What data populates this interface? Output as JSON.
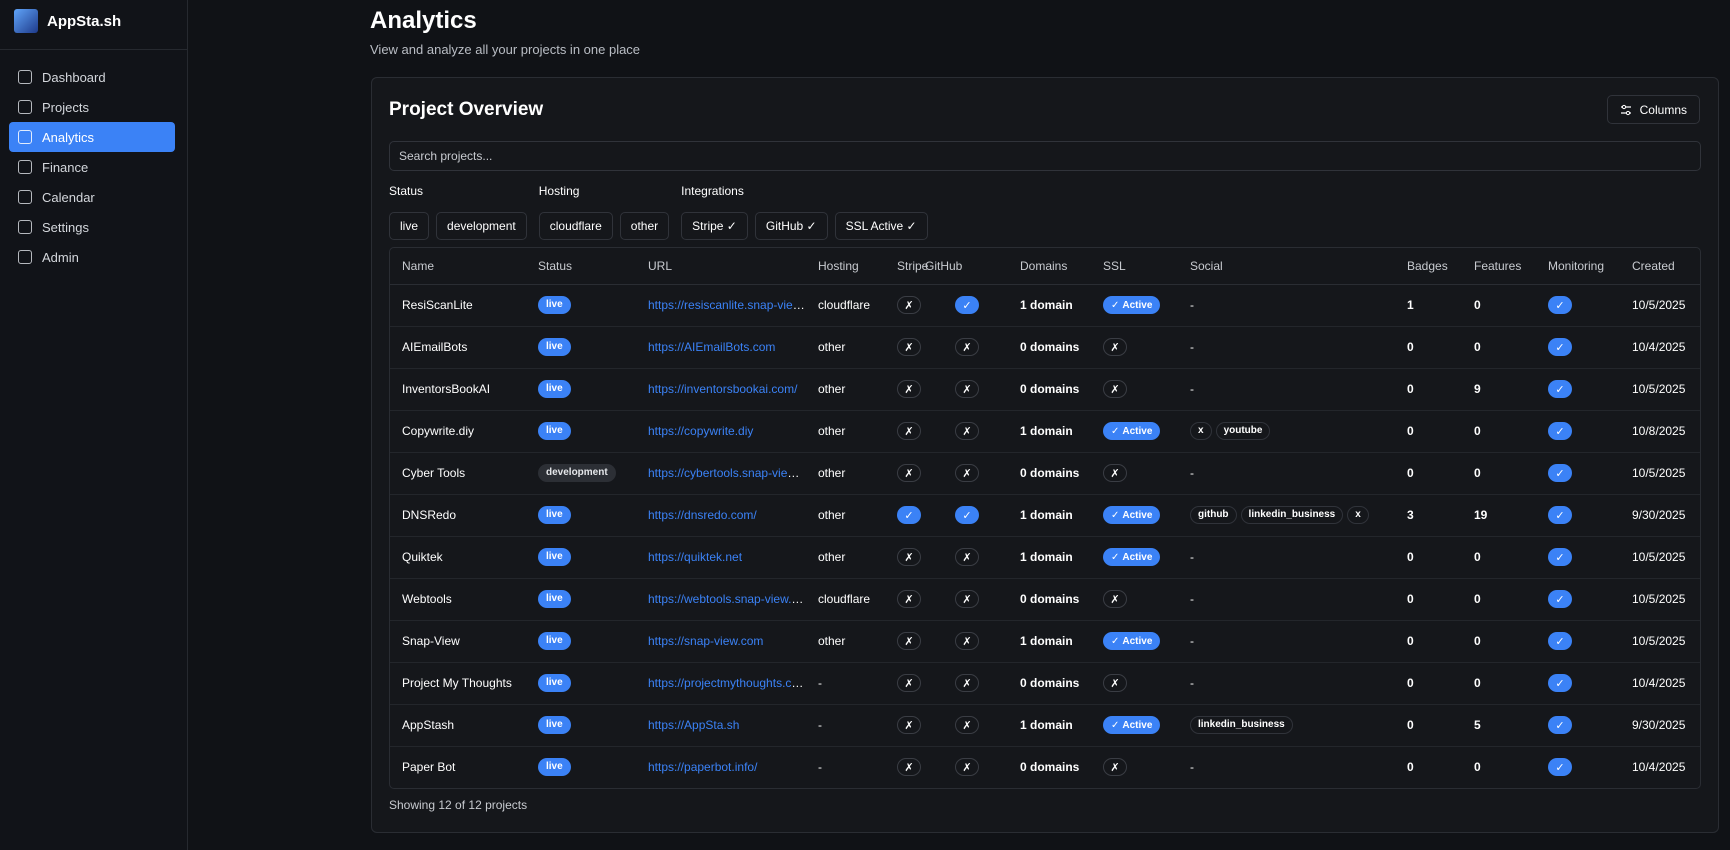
{
  "sidebar": {
    "brand": "AppSta.sh",
    "nav": [
      {
        "label": "Dashboard",
        "active": false
      },
      {
        "label": "Projects",
        "active": false
      },
      {
        "label": "Analytics",
        "active": true
      },
      {
        "label": "Finance",
        "active": false
      },
      {
        "label": "Calendar",
        "active": false
      },
      {
        "label": "Settings",
        "active": false
      },
      {
        "label": "Admin",
        "active": false
      }
    ]
  },
  "header": {
    "title": "Analytics",
    "subtitle": "View and analyze all your projects in one place"
  },
  "card": {
    "title": "Project Overview",
    "columns_button": "Columns",
    "search_placeholder": "Search projects...",
    "filters": [
      {
        "label": "Status",
        "options": [
          "live",
          "development"
        ]
      },
      {
        "label": "Hosting",
        "options": [
          "cloudflare",
          "other"
        ]
      },
      {
        "label": "Integrations",
        "options": [
          "Stripe ✓",
          "GitHub ✓",
          "SSL Active ✓"
        ]
      }
    ],
    "footer": "Showing 12 of 12 projects"
  },
  "symbols": {
    "check": "✓",
    "cross": "✗",
    "active": "Active"
  },
  "table": {
    "headers": [
      "Name",
      "Status",
      "URL",
      "Hosting",
      "Stripe",
      "GitHub",
      "Domains",
      "SSL",
      "Social",
      "Badges",
      "Features",
      "Monitoring",
      "Created"
    ],
    "rows": [
      {
        "name": "ResiScanLite",
        "status": "live",
        "url": "https://resiscanlite.snap-view.com",
        "hosting": "cloudflare",
        "stripe": false,
        "github": true,
        "domains": "1 domain",
        "ssl": true,
        "social": "-",
        "badges": 1,
        "features": 0,
        "monitoring": true,
        "created": "10/5/2025"
      },
      {
        "name": "AIEmailBots",
        "status": "live",
        "url": "https://AIEmailBots.com",
        "hosting": "other",
        "stripe": false,
        "github": false,
        "domains": "0 domains",
        "ssl": false,
        "social": "-",
        "badges": 0,
        "features": 0,
        "monitoring": true,
        "created": "10/4/2025"
      },
      {
        "name": "InventorsBookAI",
        "status": "live",
        "url": "https://inventorsbookai.com/",
        "hosting": "other",
        "stripe": false,
        "github": false,
        "domains": "0 domains",
        "ssl": false,
        "social": "-",
        "badges": 0,
        "features": 9,
        "monitoring": true,
        "created": "10/5/2025"
      },
      {
        "name": "Copywrite.diy",
        "status": "live",
        "url": "https://copywrite.diy",
        "hosting": "other",
        "stripe": false,
        "github": false,
        "domains": "1 domain",
        "ssl": true,
        "social": [
          "x",
          "youtube"
        ],
        "badges": 0,
        "features": 0,
        "monitoring": true,
        "created": "10/8/2025"
      },
      {
        "name": "Cyber Tools",
        "status": "development",
        "url": "https://cybertools.snap-view.com",
        "hosting": "other",
        "stripe": false,
        "github": false,
        "domains": "0 domains",
        "ssl": false,
        "social": "-",
        "badges": 0,
        "features": 0,
        "monitoring": true,
        "created": "10/5/2025"
      },
      {
        "name": "DNSRedo",
        "status": "live",
        "url": "https://dnsredo.com/",
        "hosting": "other",
        "stripe": true,
        "github": true,
        "domains": "1 domain",
        "ssl": true,
        "social": [
          "github",
          "linkedin_business",
          "x"
        ],
        "badges": 3,
        "features": 19,
        "monitoring": true,
        "created": "9/30/2025"
      },
      {
        "name": "Quiktek",
        "status": "live",
        "url": "https://quiktek.net",
        "hosting": "other",
        "stripe": false,
        "github": false,
        "domains": "1 domain",
        "ssl": true,
        "social": "-",
        "badges": 0,
        "features": 0,
        "monitoring": true,
        "created": "10/5/2025"
      },
      {
        "name": "Webtools",
        "status": "live",
        "url": "https://webtools.snap-view.com",
        "hosting": "cloudflare",
        "stripe": false,
        "github": false,
        "domains": "0 domains",
        "ssl": false,
        "social": "-",
        "badges": 0,
        "features": 0,
        "monitoring": true,
        "created": "10/5/2025"
      },
      {
        "name": "Snap-View",
        "status": "live",
        "url": "https://snap-view.com",
        "hosting": "other",
        "stripe": false,
        "github": false,
        "domains": "1 domain",
        "ssl": true,
        "social": "-",
        "badges": 0,
        "features": 0,
        "monitoring": true,
        "created": "10/5/2025"
      },
      {
        "name": "Project My Thoughts",
        "status": "live",
        "url": "https://projectmythoughts.com",
        "hosting": "-",
        "stripe": false,
        "github": false,
        "domains": "0 domains",
        "ssl": false,
        "social": "-",
        "badges": 0,
        "features": 0,
        "monitoring": true,
        "created": "10/4/2025"
      },
      {
        "name": "AppStash",
        "status": "live",
        "url": "https://AppSta.sh",
        "hosting": "-",
        "stripe": false,
        "github": false,
        "domains": "1 domain",
        "ssl": true,
        "social": [
          "linkedin_business"
        ],
        "badges": 0,
        "features": 5,
        "monitoring": true,
        "created": "9/30/2025"
      },
      {
        "name": "Paper Bot",
        "status": "live",
        "url": "https://paperbot.info/",
        "hosting": "-",
        "stripe": false,
        "github": false,
        "domains": "0 domains",
        "ssl": false,
        "social": "-",
        "badges": 0,
        "features": 0,
        "monitoring": true,
        "created": "10/4/2025"
      }
    ]
  }
}
